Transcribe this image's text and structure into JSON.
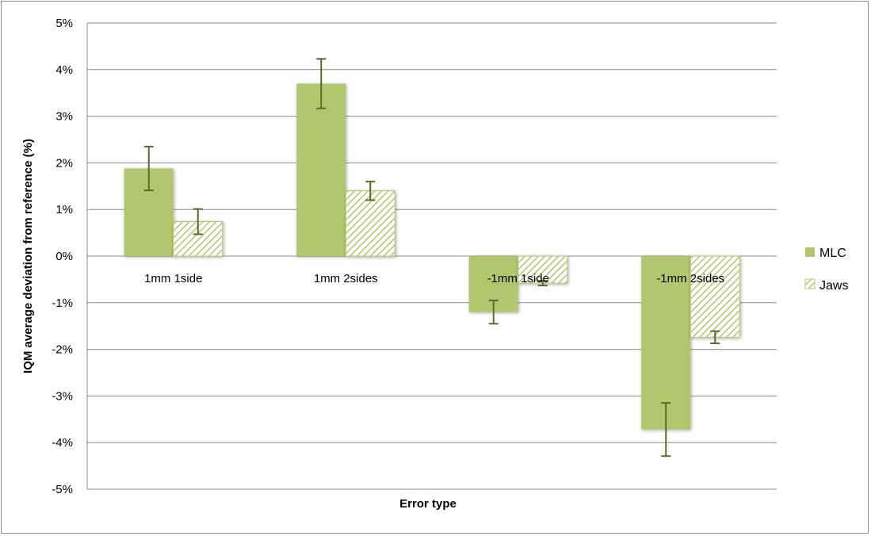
{
  "chart_data": {
    "type": "bar",
    "xlabel": "Error type",
    "ylabel": "IQM average deviation from reference (%)",
    "categories": [
      "1mm 1side",
      "1mm 2sides",
      "-1mm 1side",
      "-1mm 2sides"
    ],
    "ylim": [
      -5,
      5
    ],
    "yticks": [
      5,
      4,
      3,
      2,
      1,
      0,
      -1,
      -2,
      -3,
      -4,
      -5
    ],
    "ytick_labels": [
      "5%",
      "4%",
      "3%",
      "2%",
      "1%",
      "0%",
      "-1%",
      "-2%",
      "-3%",
      "-4%",
      "-5%"
    ],
    "grid": true,
    "legend_position": "right",
    "series": [
      {
        "name": "MLC",
        "values": [
          1.88,
          3.7,
          -1.2,
          -3.72
        ],
        "error": [
          0.47,
          0.53,
          0.25,
          0.57
        ],
        "color": "#b2c76d",
        "pattern": "solid"
      },
      {
        "name": "Jaws",
        "values": [
          0.74,
          1.4,
          -0.58,
          -1.74
        ],
        "error": [
          0.27,
          0.2,
          0.05,
          0.13
        ],
        "color": "#b2c76d",
        "pattern": "diagonal-hatch"
      }
    ],
    "error_bar_color": "#5a6a2a",
    "gridline_color": "#8c8c8c"
  }
}
